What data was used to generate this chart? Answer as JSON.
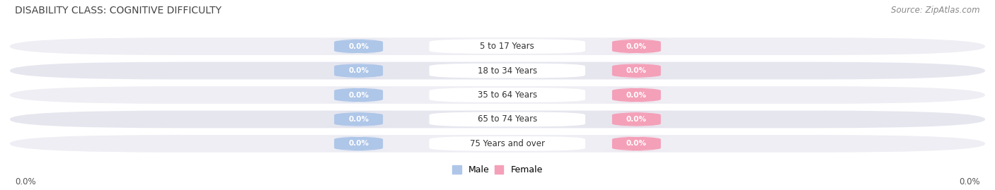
{
  "title": "DISABILITY CLASS: COGNITIVE DIFFICULTY",
  "source": "Source: ZipAtlas.com",
  "categories": [
    "5 to 17 Years",
    "18 to 34 Years",
    "35 to 64 Years",
    "65 to 74 Years",
    "75 Years and over"
  ],
  "male_values": [
    0.0,
    0.0,
    0.0,
    0.0,
    0.0
  ],
  "female_values": [
    0.0,
    0.0,
    0.0,
    0.0,
    0.0
  ],
  "male_color": "#aec6e8",
  "female_color": "#f4a0b8",
  "male_label": "Male",
  "female_label": "Female",
  "row_color_even": "#eeeeF4",
  "row_color_odd": "#e6e6ef",
  "axis_label_left": "0.0%",
  "axis_label_right": "0.0%",
  "title_fontsize": 10,
  "source_fontsize": 8.5,
  "background_color": "#ffffff"
}
